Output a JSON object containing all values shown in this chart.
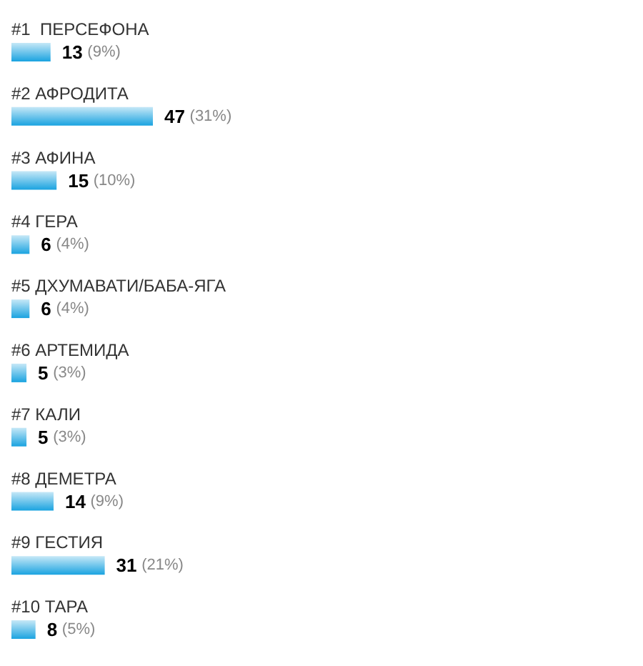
{
  "chart_data": {
    "type": "bar",
    "orientation": "horizontal",
    "categories": [
      "#1  ПЕРСЕФОНА",
      "#2 АФРОДИТА",
      "#3 АФИНА",
      "#4 ГЕРА",
      "#5 ДХУМАВАТИ/БАБА-ЯГА",
      "#6 АРТЕМИДА",
      "#7 КАЛИ",
      "#8 ДЕМЕТРА",
      "#9 ГЕСТИЯ",
      "#10 ТАРА"
    ],
    "values": [
      13,
      47,
      15,
      6,
      6,
      5,
      5,
      14,
      31,
      8
    ],
    "value_labels": [
      "13 (9%)",
      "47 (31%)",
      "15 (10%)",
      "6 (4%)",
      "6 (4%)",
      "5 (3%)",
      "5 (3%)",
      "14 (9%)",
      "31 (21%)",
      "8 (5%)"
    ],
    "color": "#1aa3e0"
  }
}
